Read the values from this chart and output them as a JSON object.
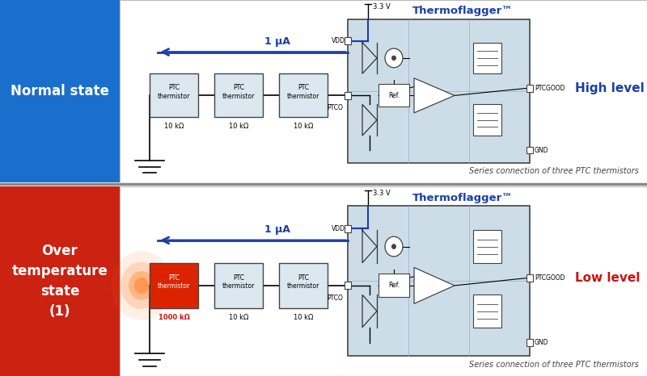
{
  "fig_width": 8.0,
  "fig_height": 4.66,
  "bg_color": "#ffffff",
  "panel1": {
    "label_bg": "#1a6fcc",
    "label_text": "Normal state",
    "label_color": "#ffffff",
    "ic_bg": "#cddde8",
    "title_text": "Thermoflagger™",
    "title_color": "#1a3faa",
    "current_label": "1 μA",
    "current_color": "#1a3faa",
    "level_text": "High level",
    "level_color": "#1a3faa",
    "resistors": [
      {
        "label": "PTC\nthermistor",
        "value": "10 kΩ",
        "highlight": false
      },
      {
        "label": "PTC\nthermistor",
        "value": "10 kΩ",
        "highlight": false
      },
      {
        "label": "PTC\nthermistor",
        "value": "10 kΩ",
        "highlight": false
      }
    ],
    "caption": "Series connection of three PTC thermistors",
    "vdd_label": "3.3 V",
    "vdd2_label": "VDD",
    "ptco_label": "PTCO",
    "ptcgood_label": "PTCGOOD",
    "gnd_label": "GND",
    "ref_label": "Ref."
  },
  "panel2": {
    "label_bg": "#cc2211",
    "label_text": "Over\ntemperature\nstate\n(1)",
    "label_color": "#ffffff",
    "ic_bg": "#cddde8",
    "title_text": "Thermoflagger™",
    "title_color": "#1a3faa",
    "current_label": "1 μA",
    "current_color": "#1a3faa",
    "level_text": "Low level",
    "level_color": "#cc1111",
    "resistors": [
      {
        "label": "PTC\nthermistor",
        "value": "1000 kΩ",
        "highlight": true
      },
      {
        "label": "PTC\nthermistor",
        "value": "10 kΩ",
        "highlight": false
      },
      {
        "label": "PTC\nthermistor",
        "value": "10 kΩ",
        "highlight": false
      }
    ],
    "caption": "Series connection of three PTC thermistors",
    "vdd_label": "3.3 V",
    "vdd2_label": "VDD",
    "ptco_label": "PTCO",
    "ptcgood_label": "PTCGOOD",
    "gnd_label": "GND",
    "ref_label": "Ref."
  }
}
